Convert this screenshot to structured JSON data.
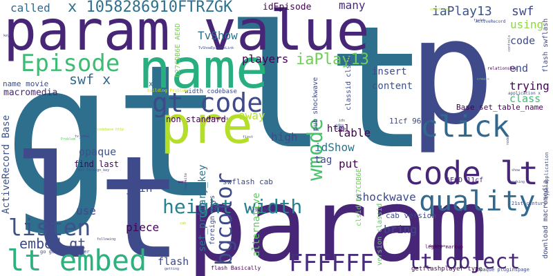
{
  "words": [
    {
      "text": "gt",
      "color": "#2e6f8e"
    },
    {
      "text": "lt",
      "color": "#2e6f8e"
    },
    {
      "text": "lt",
      "color": "#3e4a89"
    },
    {
      "text": "param",
      "color": "#482677"
    },
    {
      "text": "param value",
      "color": "#482677"
    },
    {
      "text": "p",
      "color": "#3e4a89"
    },
    {
      "text": "name",
      "color": "#29af7f"
    },
    {
      "text": "pre",
      "color": "#b5de2b"
    },
    {
      "text": "gt code",
      "color": "#3e4a89"
    },
    {
      "text": "code lt",
      "color": "#482677"
    },
    {
      "text": "click",
      "color": "#31688e"
    },
    {
      "text": "quality",
      "color": "#31688e"
    },
    {
      "text": "height width",
      "color": "#26828e"
    },
    {
      "text": "lt embed",
      "color": "#2db27d"
    },
    {
      "text": "lt object",
      "color": "#482677"
    },
    {
      "text": "FFFFFF",
      "color": "#472d7b"
    },
    {
      "text": "listen",
      "color": "#3b528b"
    },
    {
      "text": "Episode",
      "color": "#3fbc73"
    },
    {
      "text": "wmode",
      "color": "#4ac16d"
    },
    {
      "text": "bgcolor",
      "color": "#3e4a89"
    },
    {
      "text": "embed gt",
      "color": "#3e4a89"
    },
    {
      "text": "x 1058286910FTRZGK",
      "color": "#2c728e"
    },
    {
      "text": "iaPlay13",
      "color": "#6ece58"
    },
    {
      "text": "iaPlay13",
      "color": "#3b528b"
    },
    {
      "text": "swf",
      "color": "#3e4a89"
    },
    {
      "text": "swf x",
      "color": "#31688e"
    },
    {
      "text": "TvShow",
      "color": "#2c728e"
    },
    {
      "text": "players",
      "color": "#440154"
    },
    {
      "text": "macromedia",
      "color": "#482677"
    },
    {
      "text": "name movie",
      "color": "#3e4a89"
    },
    {
      "text": "called",
      "color": "#31688e"
    },
    {
      "text": "x",
      "color": "#31688e"
    },
    {
      "text": "idEpisode",
      "color": "#440154"
    },
    {
      "text": "many",
      "color": "#472d7b"
    },
    {
      "text": "using",
      "color": "#8fd744"
    },
    {
      "text": "code",
      "color": "#3e4a89"
    },
    {
      "text": "end",
      "color": "#3e4a89"
    },
    {
      "text": "trying",
      "color": "#440154"
    },
    {
      "text": "insert",
      "color": "#3e4a89"
    },
    {
      "text": "content",
      "color": "#3b528b"
    },
    {
      "text": "class",
      "color": "#3fbc73"
    },
    {
      "text": "Base set_table_name",
      "color": "#440154"
    },
    {
      "text": "table",
      "color": "#440154"
    },
    {
      "text": "html",
      "color": "#440154"
    },
    {
      "text": "idShow",
      "color": "#2c728e"
    },
    {
      "text": "high",
      "color": "#3e4a89"
    },
    {
      "text": "tag",
      "color": "#3e4a89"
    },
    {
      "text": "put",
      "color": "#440154"
    },
    {
      "text": "shockwave",
      "color": "#3e4a89"
    },
    {
      "text": "bring",
      "color": "#3e4a89"
    },
    {
      "text": "cab version",
      "color": "#3e4a89"
    },
    {
      "text": "join",
      "color": "#3e4a89"
    },
    {
      "text": "piece",
      "color": "#440154"
    },
    {
      "text": "use",
      "color": "#3e4a89"
    },
    {
      "text": "flash",
      "color": "#3e4a89"
    },
    {
      "text": "opaque",
      "color": "#3b528b"
    },
    {
      "text": "find last",
      "color": "#440154"
    },
    {
      "text": "away",
      "color": "#b5de2b"
    },
    {
      "text": "non standard",
      "color": "#440154"
    },
    {
      "text": "width codebase",
      "color": "#3e4a89"
    },
    {
      "text": "swflash cab",
      "color": "#3e4a89"
    },
    {
      "text": "11cf 96B8",
      "color": "#3e4a89"
    },
    {
      "text": "AE6D 11cf",
      "color": "#482677"
    },
    {
      "text": "ActiveRecord Base",
      "color": "#3b528b"
    },
    {
      "text": "set_primary_key",
      "color": "#2c728e"
    },
    {
      "text": "alternative",
      "color": "#5ec962"
    },
    {
      "text": "foreign keys",
      "color": "#3e4a89"
    },
    {
      "text": "D27CDB6E AE6D",
      "color": "#7ad151"
    },
    {
      "text": "clsid D27CDB6E",
      "color": "#6ece58"
    },
    {
      "text": "version classid",
      "color": "#5ec962"
    },
    {
      "text": "pub shockwave",
      "color": "#3e4a89"
    },
    {
      "text": "classid clsid",
      "color": "#3e4a89"
    },
    {
      "text": "download macromedia",
      "color": "#3e4a89"
    },
    {
      "text": "flash swflash",
      "color": "#3e4a89"
    },
    {
      "text": "getflashplayer type",
      "color": "#440154"
    },
    {
      "text": "flash Basically",
      "color": "#440154"
    },
    {
      "text": "high src",
      "color": "#3e4a89"
    },
    {
      "text": "legacy markup",
      "color": "#440154"
    },
    {
      "text": "21st century",
      "color": "#3e4a89"
    },
    {
      "text": "opaque pluginspage",
      "color": "#3e4a89"
    },
    {
      "text": "type application",
      "color": "#3e4a89"
    },
    {
      "text": "go getflashplayer",
      "color": "#3e4a89"
    },
    {
      "text": "building Problem",
      "color": "#d8e219"
    },
    {
      "text": "application x",
      "color": "#3e4a89"
    },
    {
      "text": "relationship",
      "color": "#440154"
    },
    {
      "text": "ActiveRecord",
      "color": "#3e4a89"
    },
    {
      "text": "fields",
      "color": "#3e4a89"
    },
    {
      "text": "create",
      "color": "#5ec962"
    },
    {
      "text": "database",
      "color": "#440154"
    },
    {
      "text": "TvShowEpisodeLink",
      "color": "#3e4a89"
    },
    {
      "text": "something",
      "color": "#b5de2b"
    },
    {
      "text": "Ultimately",
      "color": "#440154"
    },
    {
      "text": "key",
      "color": "#3e4a89"
    },
    {
      "text": "first",
      "color": "#3e4a89"
    },
    {
      "text": "working",
      "color": "#3e4a89"
    },
    {
      "text": "following",
      "color": "#3e4a89"
    },
    {
      "text": "getting",
      "color": "#3e4a89"
    },
    {
      "text": "new site",
      "color": "#3e4a89"
    },
    {
      "text": "want",
      "color": "#440154"
    },
    {
      "text": "codebase http",
      "color": "#b5de2b"
    },
    {
      "text": "tv_show",
      "color": "#3e4a89"
    },
    {
      "text": "Problem",
      "color": "#5ec962"
    },
    {
      "text": "ids",
      "color": "#3e4a89"
    },
    {
      "text": "set_foreign_key",
      "color": "#3e4a89"
    },
    {
      "text": "show",
      "color": "#3e4a89"
    },
    {
      "text": "idea",
      "color": "#3e4a89"
    },
    {
      "text": "tvshow",
      "color": "#3e4a89"
    },
    {
      "text": "controls",
      "color": "#3e4a89"
    },
    {
      "text": "node",
      "color": "#3e4a89"
    },
    {
      "text": "cab",
      "color": "#b5de2b"
    }
  ]
}
